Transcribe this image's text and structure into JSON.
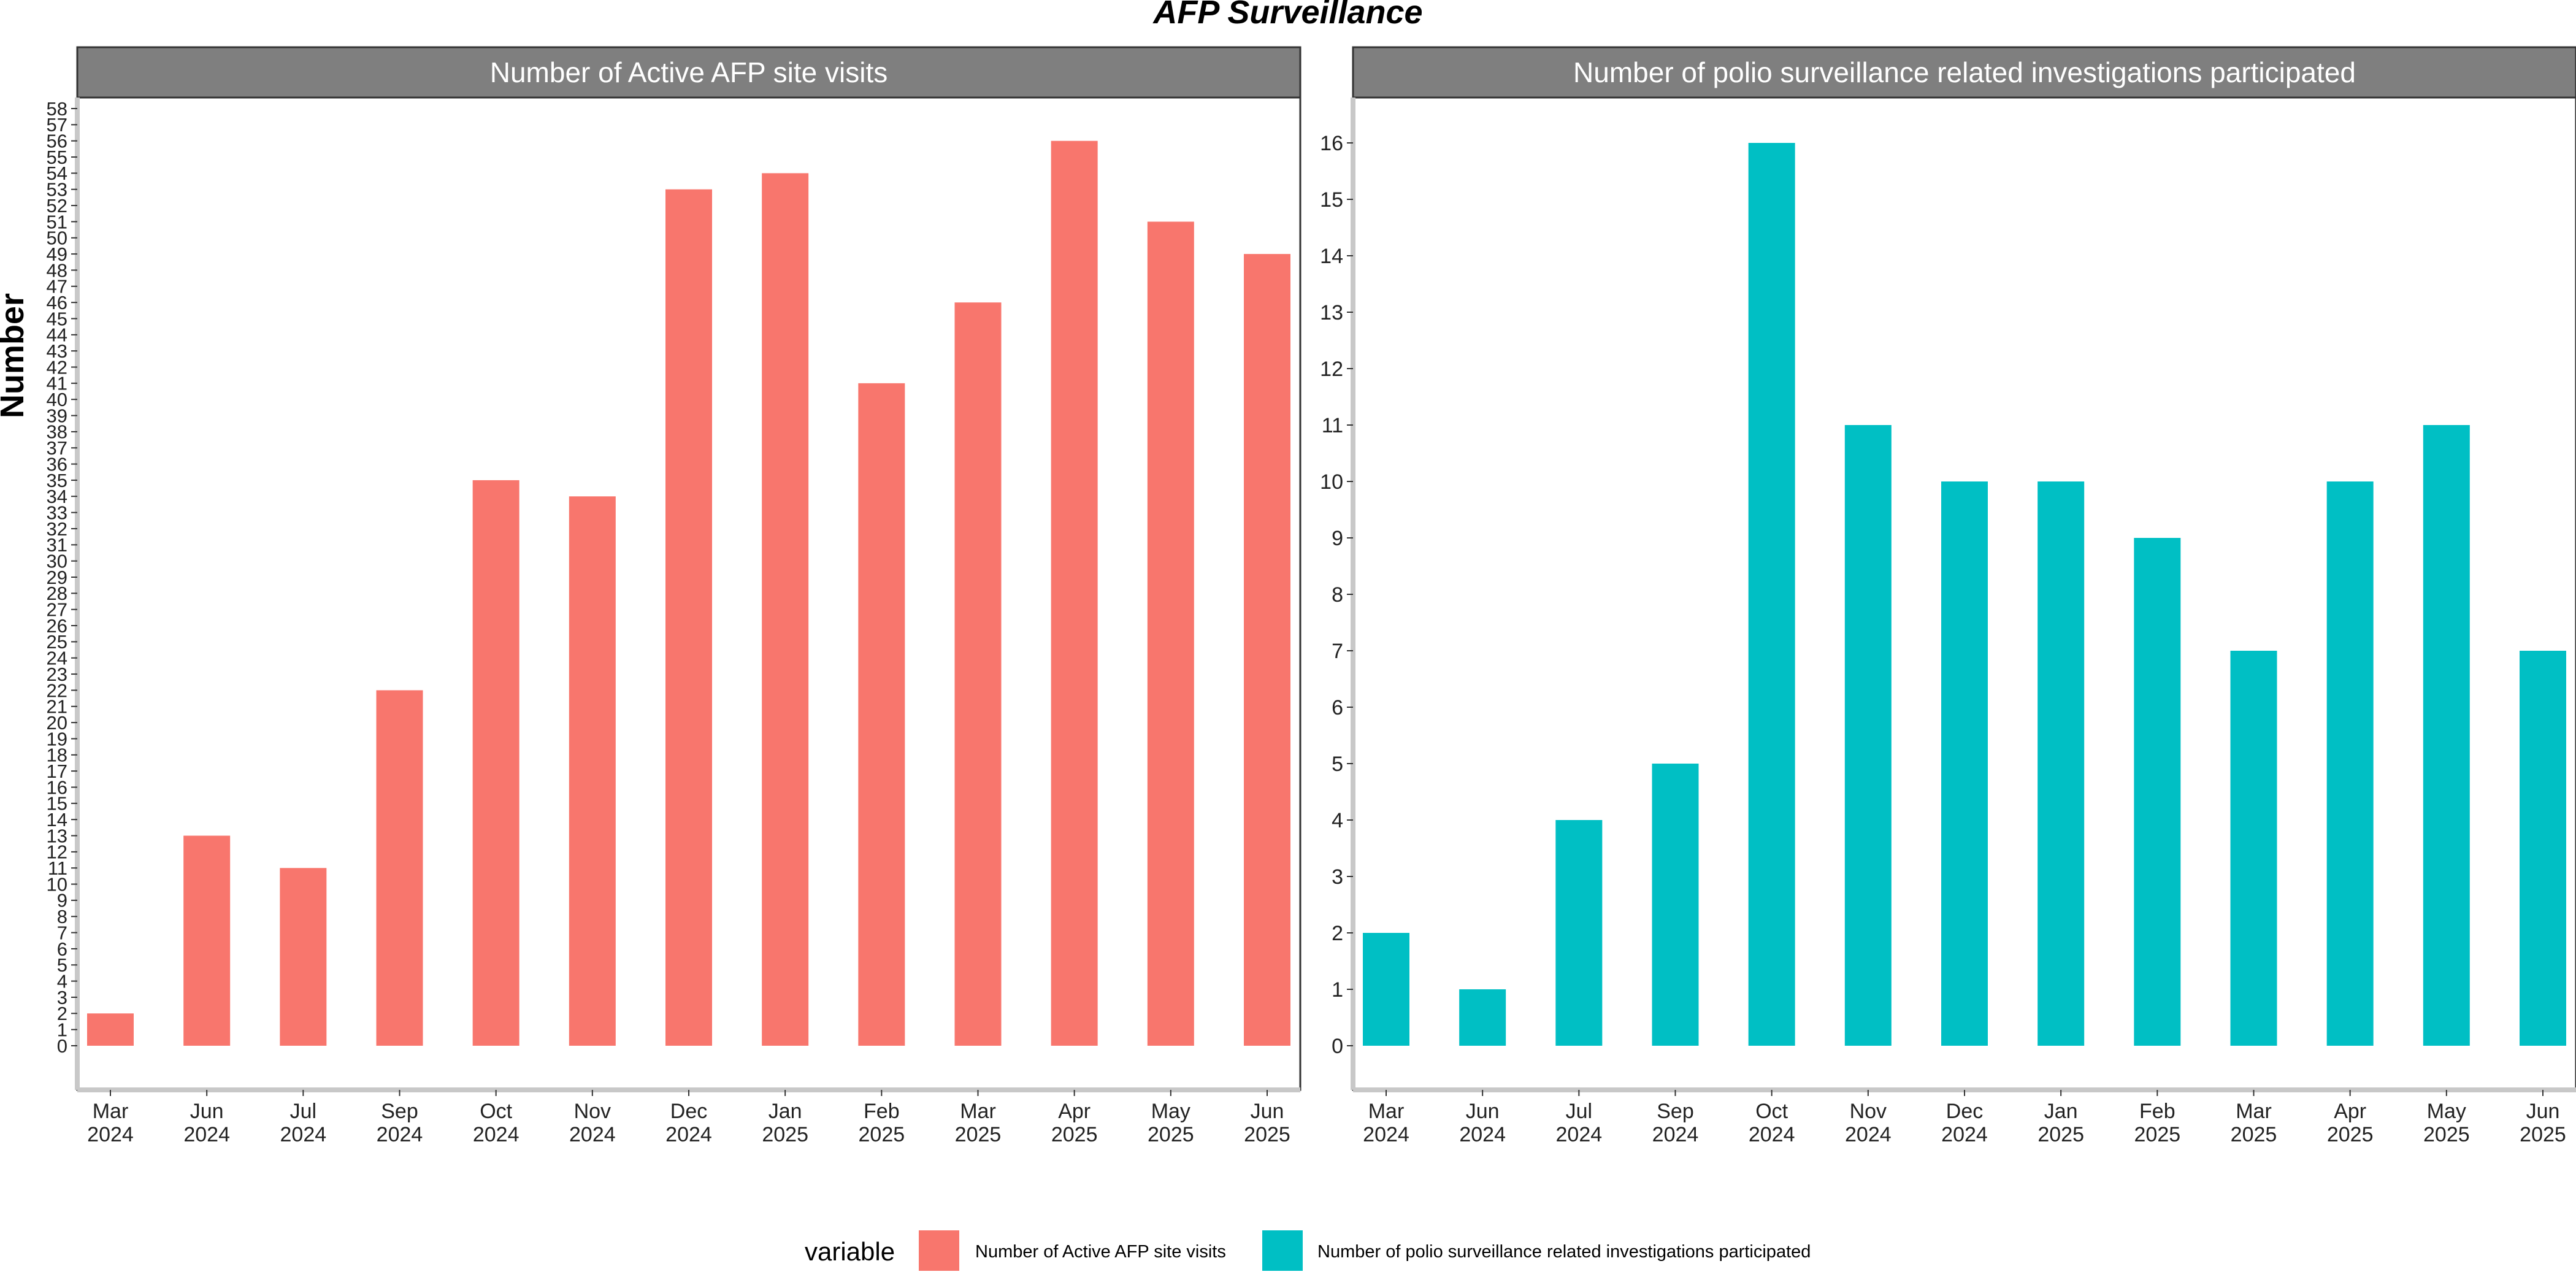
{
  "title": "AFP Surveillance",
  "ylabel": "Number",
  "legend": {
    "title": "variable",
    "position": "bottom"
  },
  "chart_data": [
    {
      "type": "bar",
      "title": "Number of Active AFP site visits",
      "color": "#f8766d",
      "grid": false,
      "categories": [
        "Mar\n2024",
        "Jun\n2024",
        "Jul\n2024",
        "Sep\n2024",
        "Oct\n2024",
        "Nov\n2024",
        "Dec\n2024",
        "Jan\n2025",
        "Feb\n2025",
        "Mar\n2025",
        "Apr\n2025",
        "May\n2025",
        "Jun\n2025"
      ],
      "series": [
        {
          "name": "Number of Active AFP site visits",
          "values": [
            2,
            13,
            11,
            22,
            35,
            34,
            53,
            54,
            41,
            46,
            56,
            51,
            49
          ]
        }
      ],
      "ylim": [
        0,
        58
      ],
      "yticks_step": 1
    },
    {
      "type": "bar",
      "title": "Number of polio surveillance related investigations participated",
      "color": "#00bfc4",
      "grid": false,
      "categories": [
        "Mar\n2024",
        "Jun\n2024",
        "Jul\n2024",
        "Sep\n2024",
        "Oct\n2024",
        "Nov\n2024",
        "Dec\n2024",
        "Jan\n2025",
        "Feb\n2025",
        "Mar\n2025",
        "Apr\n2025",
        "May\n2025",
        "Jun\n2025"
      ],
      "series": [
        {
          "name": "Number of polio surveillance related investigations participated",
          "values": [
            2,
            1,
            4,
            5,
            16,
            11,
            10,
            10,
            9,
            7,
            10,
            11,
            7
          ]
        }
      ],
      "ylim": [
        0,
        16
      ],
      "yticks_step": 1
    }
  ]
}
